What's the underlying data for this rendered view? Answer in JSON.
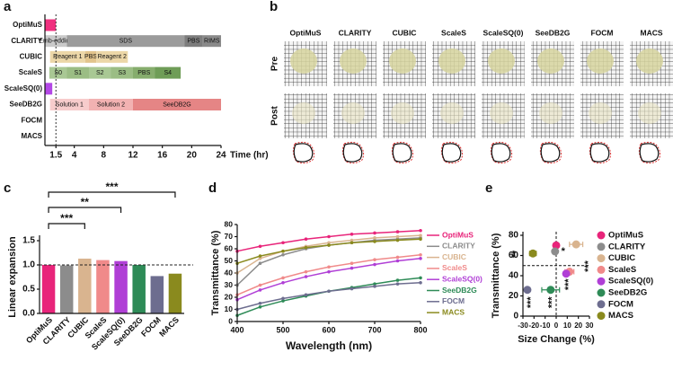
{
  "image_panel": {
    "panel_label": "b",
    "columns": [
      "OptiMuS",
      "CLARITY",
      "CUBIC",
      "ScaleS",
      "ScaleSQ(0)",
      "SeeDB2G",
      "FOCM",
      "MACS"
    ],
    "rows": [
      "Pre",
      "Post"
    ]
  },
  "chart_data": [
    {
      "type": "timeline",
      "panel_label": "a",
      "xlabel": "Time (hr)",
      "xlim": [
        0,
        24
      ],
      "xticks": [
        1.5,
        4,
        8,
        12,
        16,
        20,
        24
      ],
      "reference_line": 1.5,
      "rows": [
        {
          "name": "OptiMuS",
          "segments": [
            {
              "start": 0,
              "end": 1.5,
              "color": "#f0307f"
            }
          ]
        },
        {
          "name": "CLARITY",
          "segments": [
            {
              "label": "Emb-edding",
              "start": 0,
              "end": 3,
              "color": "#c9c9c9"
            },
            {
              "label": "SDS",
              "start": 3,
              "end": 19,
              "color": "#9b9b9b"
            },
            {
              "label": "PBS",
              "start": 19,
              "end": 21.5,
              "color": "#7d7d7d"
            },
            {
              "label": "RIMS",
              "start": 21.5,
              "end": 24,
              "color": "#8a8a8a"
            }
          ]
        },
        {
          "name": "CUBIC",
          "segments": [
            {
              "label": "Reagent 1",
              "start": 0.7,
              "end": 5.5,
              "color": "#ecd7a8"
            },
            {
              "label": "PBS",
              "start": 5.5,
              "end": 7,
              "color": "#e2c48c"
            },
            {
              "label": "Reagent 2",
              "start": 7,
              "end": 11.3,
              "color": "#ecd7a8"
            }
          ]
        },
        {
          "name": "ScaleS",
          "segments": [
            {
              "label": "S0",
              "start": 0.6,
              "end": 3,
              "color": "#a9c894"
            },
            {
              "label": "S1",
              "start": 3,
              "end": 6,
              "color": "#9bbd84"
            },
            {
              "label": "S2",
              "start": 6,
              "end": 9,
              "color": "#a9c894"
            },
            {
              "label": "S3",
              "start": 9,
              "end": 12,
              "color": "#9bbd84"
            },
            {
              "label": "PBS",
              "start": 12,
              "end": 15,
              "color": "#86ad6d"
            },
            {
              "label": "S4",
              "start": 15,
              "end": 18.5,
              "color": "#6f9d57"
            }
          ]
        },
        {
          "name": "ScaleSQ(0)",
          "segments": [
            {
              "start": 0,
              "end": 1,
              "color": "#b347e6"
            }
          ]
        },
        {
          "name": "SeeDB2G",
          "segments": [
            {
              "label": "Solution 1",
              "start": 0.7,
              "end": 6,
              "color": "#f7cccc"
            },
            {
              "label": "Solution 2",
              "start": 6,
              "end": 12,
              "color": "#f2b2b2"
            },
            {
              "label": "SeeDB2G",
              "start": 12,
              "end": 24,
              "color": "#e58585"
            }
          ]
        },
        {
          "name": "FOCM",
          "segments": []
        },
        {
          "name": "MACS",
          "segments": []
        }
      ]
    },
    {
      "type": "bar",
      "panel_label": "c",
      "ylabel": "Linear expansion",
      "categories": [
        "OptiMuS",
        "CLARITY",
        "CUBIC",
        "ScaleS",
        "ScaleSQ(0)",
        "SeeDB2G",
        "FOCM",
        "MACS"
      ],
      "values": [
        1.0,
        0.99,
        1.13,
        1.1,
        1.08,
        1.0,
        0.77,
        0.82
      ],
      "colors": [
        "#e8247a",
        "#8c8c8c",
        "#d9b48f",
        "#f08a8a",
        "#b03fd6",
        "#2e8b57",
        "#6d6d8f",
        "#8a8a1e"
      ],
      "ylim": [
        0,
        1.5
      ],
      "yticks": [
        {
          "value": 0,
          "label": "0.0"
        },
        {
          "value": 0.5,
          "label": "0.5"
        },
        {
          "value": 1,
          "label": "1.0"
        },
        {
          "value": 1.5,
          "label": "1.5"
        }
      ],
      "reference_line": 1,
      "significance": [
        "***",
        "**",
        "***"
      ]
    },
    {
      "type": "line",
      "panel_label": "d",
      "xlabel": "Wavelength (nm)",
      "ylabel": "Transmittance (%)",
      "x": [
        400,
        450,
        500,
        550,
        600,
        650,
        700,
        750,
        800
      ],
      "xlim": [
        400,
        800
      ],
      "xticks": [
        400,
        500,
        600,
        700,
        800
      ],
      "ylim": [
        0,
        80
      ],
      "yticks": [
        0,
        10,
        20,
        30,
        40,
        50,
        60,
        70,
        80
      ],
      "series": [
        {
          "name": "OptiMuS",
          "color": "#e8247a",
          "values": [
            58,
            62,
            65,
            68,
            70,
            72,
            73,
            74,
            75
          ]
        },
        {
          "name": "CLARITY",
          "color": "#8c8c8c",
          "values": [
            30,
            48,
            55,
            60,
            63,
            65,
            67,
            68,
            69
          ]
        },
        {
          "name": "CUBIC",
          "color": "#d9b48f",
          "values": [
            40,
            52,
            58,
            62,
            65,
            67,
            69,
            70,
            71
          ]
        },
        {
          "name": "ScaleS",
          "color": "#f08a8a",
          "values": [
            22,
            30,
            36,
            41,
            45,
            48,
            51,
            53,
            55
          ]
        },
        {
          "name": "ScaleSQ(0)",
          "color": "#b03fd6",
          "values": [
            18,
            26,
            32,
            37,
            41,
            44,
            47,
            50,
            52
          ]
        },
        {
          "name": "SeeDB2G",
          "color": "#2e8b57",
          "values": [
            5,
            12,
            17,
            21,
            25,
            28,
            31,
            34,
            36
          ]
        },
        {
          "name": "FOCM",
          "color": "#6d6d8f",
          "values": [
            10,
            15,
            19,
            22,
            25,
            27,
            29,
            31,
            32
          ]
        },
        {
          "name": "MACS",
          "color": "#8a8a1e",
          "values": [
            48,
            54,
            58,
            61,
            63,
            65,
            66,
            67,
            68
          ]
        }
      ]
    },
    {
      "type": "scatter",
      "panel_label": "e",
      "xlabel": "Size Change (%)",
      "ylabel": "Transmittance (%)",
      "xlim": [
        -30,
        30
      ],
      "xticks": [
        -30,
        -20,
        -10,
        0,
        10,
        20,
        30
      ],
      "ylim": [
        0,
        80
      ],
      "yticks": [
        0,
        20,
        40,
        60,
        80
      ],
      "reference_x": 0,
      "reference_y": 50,
      "points": [
        {
          "name": "OptiMuS",
          "color": "#e8247a",
          "x": 0,
          "y": 70,
          "xerr": 0.5
        },
        {
          "name": "CLARITY",
          "color": "#8c8c8c",
          "x": -1,
          "y": 64,
          "xerr": 1
        },
        {
          "name": "CUBIC",
          "color": "#d9b48f",
          "x": 18,
          "y": 71,
          "xerr": 6
        },
        {
          "name": "ScaleS",
          "color": "#f08a8a",
          "x": 12,
          "y": 44,
          "xerr": 4
        },
        {
          "name": "ScaleSQ(0)",
          "color": "#b03fd6",
          "x": 9,
          "y": 42,
          "xerr": 1.5
        },
        {
          "name": "SeeDB2G",
          "color": "#2e8b57",
          "x": -5,
          "y": 26,
          "xerr": 8
        },
        {
          "name": "FOCM",
          "color": "#6d6d8f",
          "x": -26,
          "y": 26,
          "xerr": 1
        },
        {
          "name": "MACS",
          "color": "#8a8a1e",
          "x": -21,
          "y": 62,
          "xerr": 3
        }
      ],
      "significance": [
        "**",
        "*",
        "***",
        "***",
        "***",
        "***"
      ]
    }
  ]
}
